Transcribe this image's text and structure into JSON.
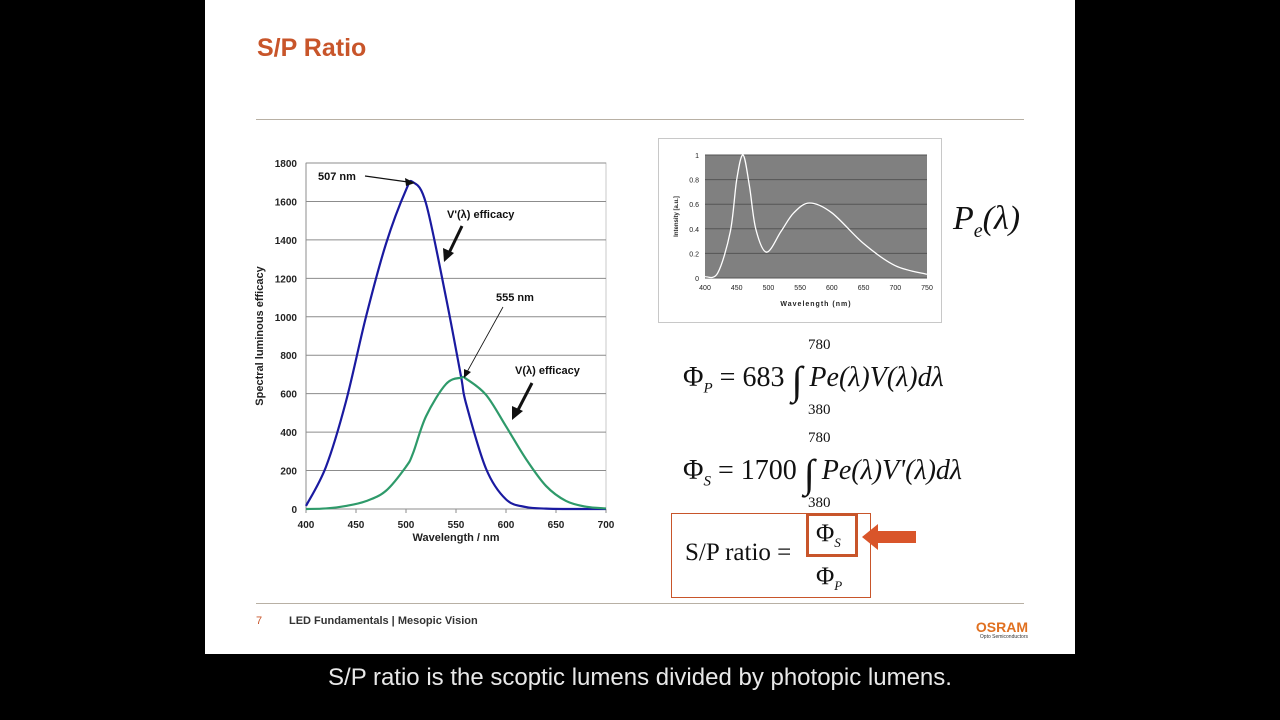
{
  "slide": {
    "title": "S/P Ratio",
    "page_number": "7",
    "footer_text": "LED Fundamentals | Mesopic Vision",
    "logo": {
      "name": "OSRAM",
      "subtitle": "Opto Semiconductors"
    },
    "accent_color": "#c8552a"
  },
  "equations": {
    "pe_label": "Pe(λ)",
    "phi_p": {
      "lhs": "Φ",
      "lhs_sub": "P",
      "coef": "683",
      "upper": "780",
      "lower": "380",
      "integrand": "Pe(λ)V(λ)dλ"
    },
    "phi_s": {
      "lhs": "Φ",
      "lhs_sub": "S",
      "coef": "1700",
      "upper": "780",
      "lower": "380",
      "integrand": "Pe(λ)V'(λ)dλ"
    },
    "sp_ratio": {
      "label": "S/P ratio =",
      "numerator": "Φ",
      "numerator_sub": "S",
      "denominator": "Φ",
      "denominator_sub": "P"
    }
  },
  "caption": "S/P ratio is the scoptic lumens divided by photopic lumens.",
  "chart_data": [
    {
      "type": "line",
      "title": "",
      "xlabel": "Wavelength / nm",
      "ylabel": "Spectral luminous efficacy",
      "xlim": [
        400,
        700
      ],
      "ylim": [
        0,
        1800
      ],
      "xticks": [
        400,
        450,
        500,
        550,
        600,
        650,
        700
      ],
      "yticks": [
        0,
        200,
        400,
        600,
        800,
        1000,
        1200,
        1400,
        1600,
        1800
      ],
      "grid": "horizontal",
      "x": [
        400,
        420,
        440,
        460,
        480,
        500,
        507,
        520,
        540,
        555,
        560,
        580,
        600,
        620,
        640,
        660,
        680,
        700
      ],
      "series": [
        {
          "name": "V'(λ) efficacy",
          "color": "#1a1aa0",
          "values": [
            16,
            220,
            560,
            1000,
            1380,
            1660,
            1700,
            1590,
            1100,
            690,
            550,
            210,
            50,
            10,
            2,
            0,
            0,
            0
          ]
        },
        {
          "name": "V(λ) efficacy",
          "color": "#2e9a6a",
          "values": [
            0,
            3,
            16,
            41,
            95,
            220,
            290,
            482,
            650,
            683,
            678,
            594,
            430,
            260,
            120,
            42,
            12,
            3
          ]
        }
      ],
      "annotations": [
        "507 nm",
        "555 nm",
        "V'(λ) efficacy",
        "V(λ) efficacy"
      ]
    },
    {
      "type": "line",
      "title": "",
      "xlabel": "Wavelength (nm)",
      "ylabel": "Intensity [a.u.]",
      "xlim": [
        400,
        750
      ],
      "ylim": [
        0,
        1
      ],
      "xticks": [
        400,
        450,
        500,
        550,
        600,
        650,
        700,
        750
      ],
      "yticks": [
        0,
        0.2,
        0.4,
        0.6,
        0.8,
        1
      ],
      "grid": "horizontal",
      "background": "#808080",
      "x": [
        400,
        420,
        440,
        450,
        460,
        470,
        480,
        497,
        520,
        540,
        565,
        600,
        650,
        700,
        750
      ],
      "series": [
        {
          "name": "Pe(λ)",
          "color": "#ffffff",
          "values": [
            0.01,
            0.04,
            0.38,
            0.8,
            1.0,
            0.75,
            0.4,
            0.21,
            0.38,
            0.53,
            0.61,
            0.53,
            0.28,
            0.1,
            0.03
          ]
        }
      ]
    }
  ]
}
